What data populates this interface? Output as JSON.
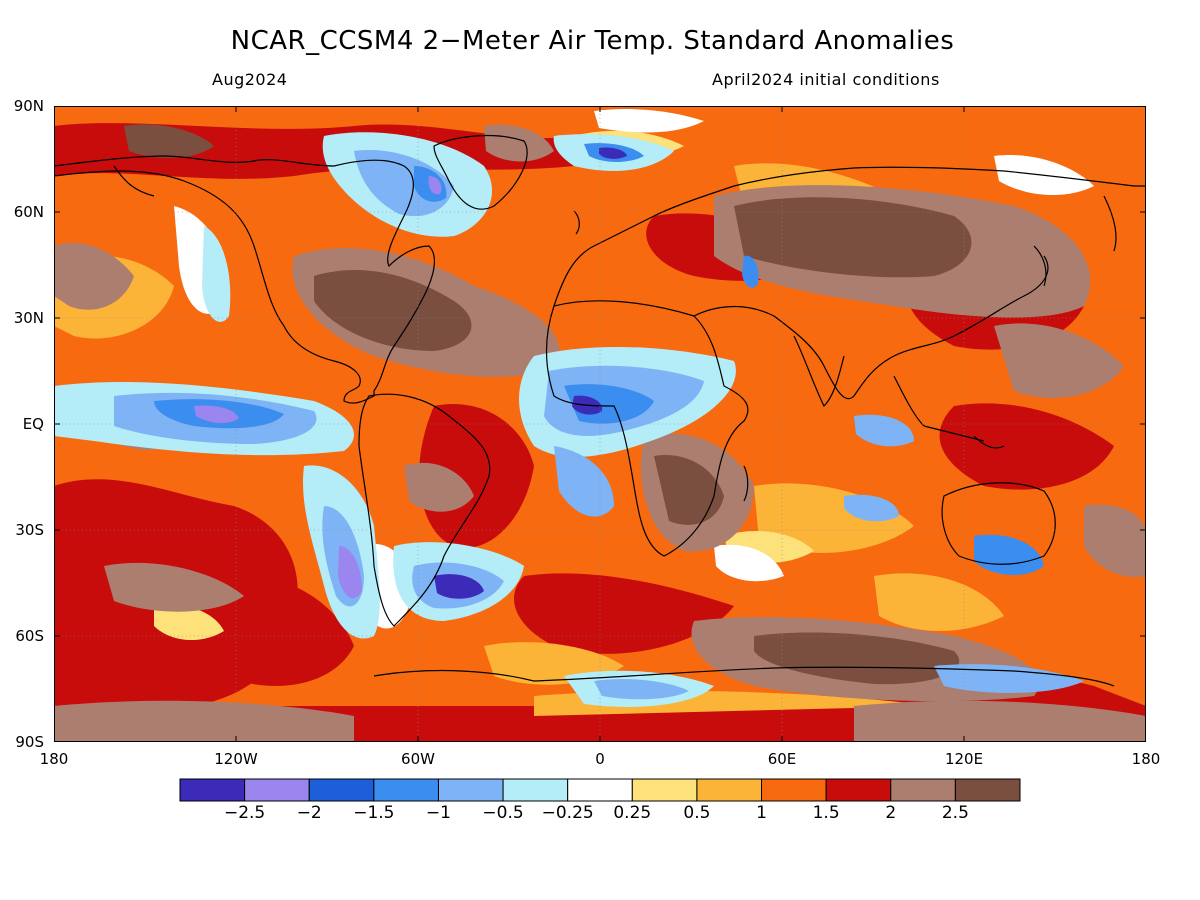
{
  "header": {
    "title": "NCAR_CCSM4 2−Meter Air Temp. Standard Anomalies",
    "valid_month": "Aug2024",
    "init_conditions": "April2024 initial conditions"
  },
  "axes": {
    "lat_ticks": [
      "90N",
      "60N",
      "30N",
      "EQ",
      "30S",
      "60S",
      "90S"
    ],
    "lon_ticks": [
      "180",
      "120W",
      "60W",
      "0",
      "60E",
      "120E",
      "180"
    ]
  },
  "legend": {
    "colors": [
      "#3b2bb8",
      "#9a86ee",
      "#1d5fd9",
      "#3b8df0",
      "#7eb4f5",
      "#b4ecf8",
      "#ffffff",
      "#fde27b",
      "#fbb338",
      "#f76a0f",
      "#c80c0c",
      "#ac7e6f",
      "#7a4f40"
    ],
    "labels": [
      "−2.5",
      "−2",
      "−1.5",
      "−1",
      "−0.5",
      "−0.25",
      "0.25",
      "0.5",
      "1",
      "1.5",
      "2",
      "2.5"
    ]
  }
}
